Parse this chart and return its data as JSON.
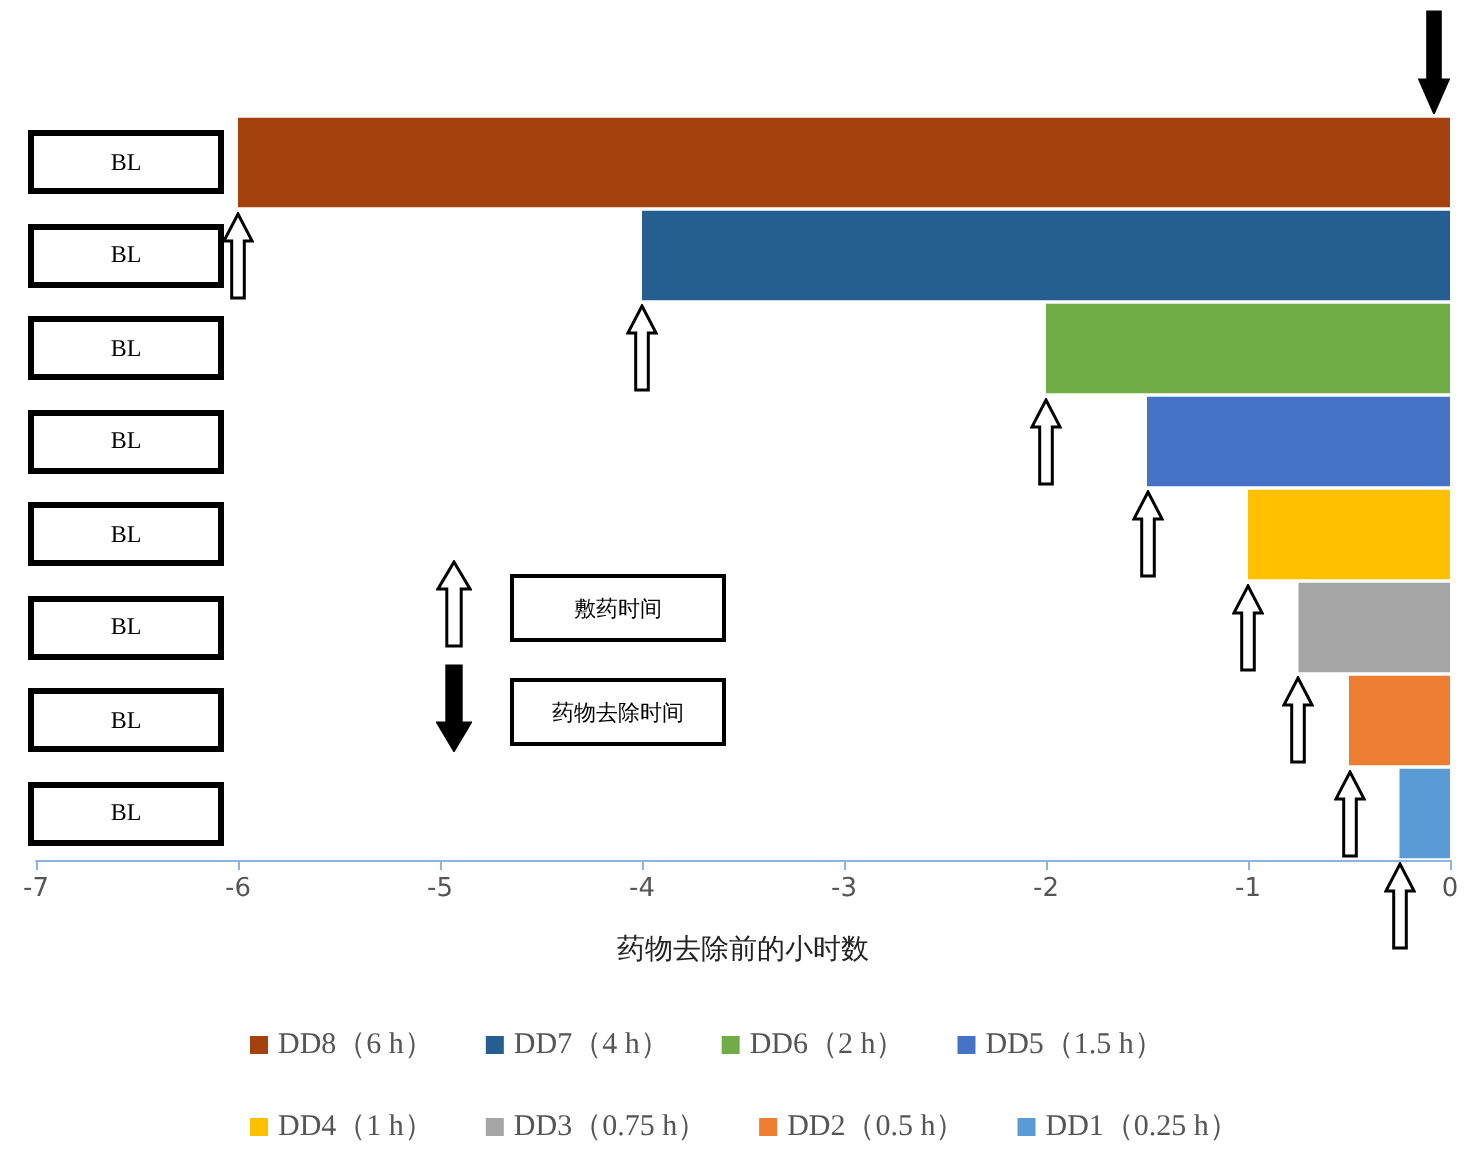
{
  "chart_data": {
    "type": "bar",
    "orientation": "horizontal",
    "stacked": true,
    "categories": [
      "BL",
      "BL",
      "BL",
      "BL",
      "BL",
      "BL",
      "BL",
      "BL"
    ],
    "series": [
      {
        "name": "DD8（6 h）",
        "color": "#a5410e",
        "values": [
          -6,
          null,
          null,
          null,
          null,
          null,
          null,
          null
        ]
      },
      {
        "name": "DD7（4 h）",
        "color": "#255e91",
        "values": [
          null,
          -4,
          null,
          null,
          null,
          null,
          null,
          null
        ]
      },
      {
        "name": "DD6（2 h）",
        "color": "#70ad47",
        "values": [
          null,
          null,
          -2,
          null,
          null,
          null,
          null,
          null
        ]
      },
      {
        "name": "DD5（1.5 h）",
        "color": "#4472c4",
        "values": [
          null,
          null,
          null,
          -1.5,
          null,
          null,
          null,
          null
        ]
      },
      {
        "name": "DD4（1 h）",
        "color": "#ffc000",
        "values": [
          null,
          null,
          null,
          null,
          -1,
          null,
          null,
          null
        ]
      },
      {
        "name": "DD3（0.75 h）",
        "color": "#a5a5a5",
        "values": [
          null,
          null,
          null,
          null,
          null,
          -0.75,
          null,
          null
        ]
      },
      {
        "name": "DD2（0.5 h）",
        "color": "#ed7d31",
        "values": [
          null,
          null,
          null,
          null,
          null,
          null,
          -0.5,
          null
        ]
      },
      {
        "name": "DD1（0.25 h）",
        "color": "#5b9bd5",
        "values": [
          null,
          null,
          null,
          null,
          null,
          null,
          null,
          -0.25
        ]
      }
    ],
    "xlabel": "药物去除前的小时数",
    "xlim": [
      -7,
      0
    ],
    "xticks": [
      -7,
      -6,
      -5,
      -4,
      -3,
      -2,
      -1,
      0
    ],
    "annotations": [
      "敷药时间",
      "药物去除时间"
    ],
    "grid": false,
    "legend": "bottom"
  }
}
